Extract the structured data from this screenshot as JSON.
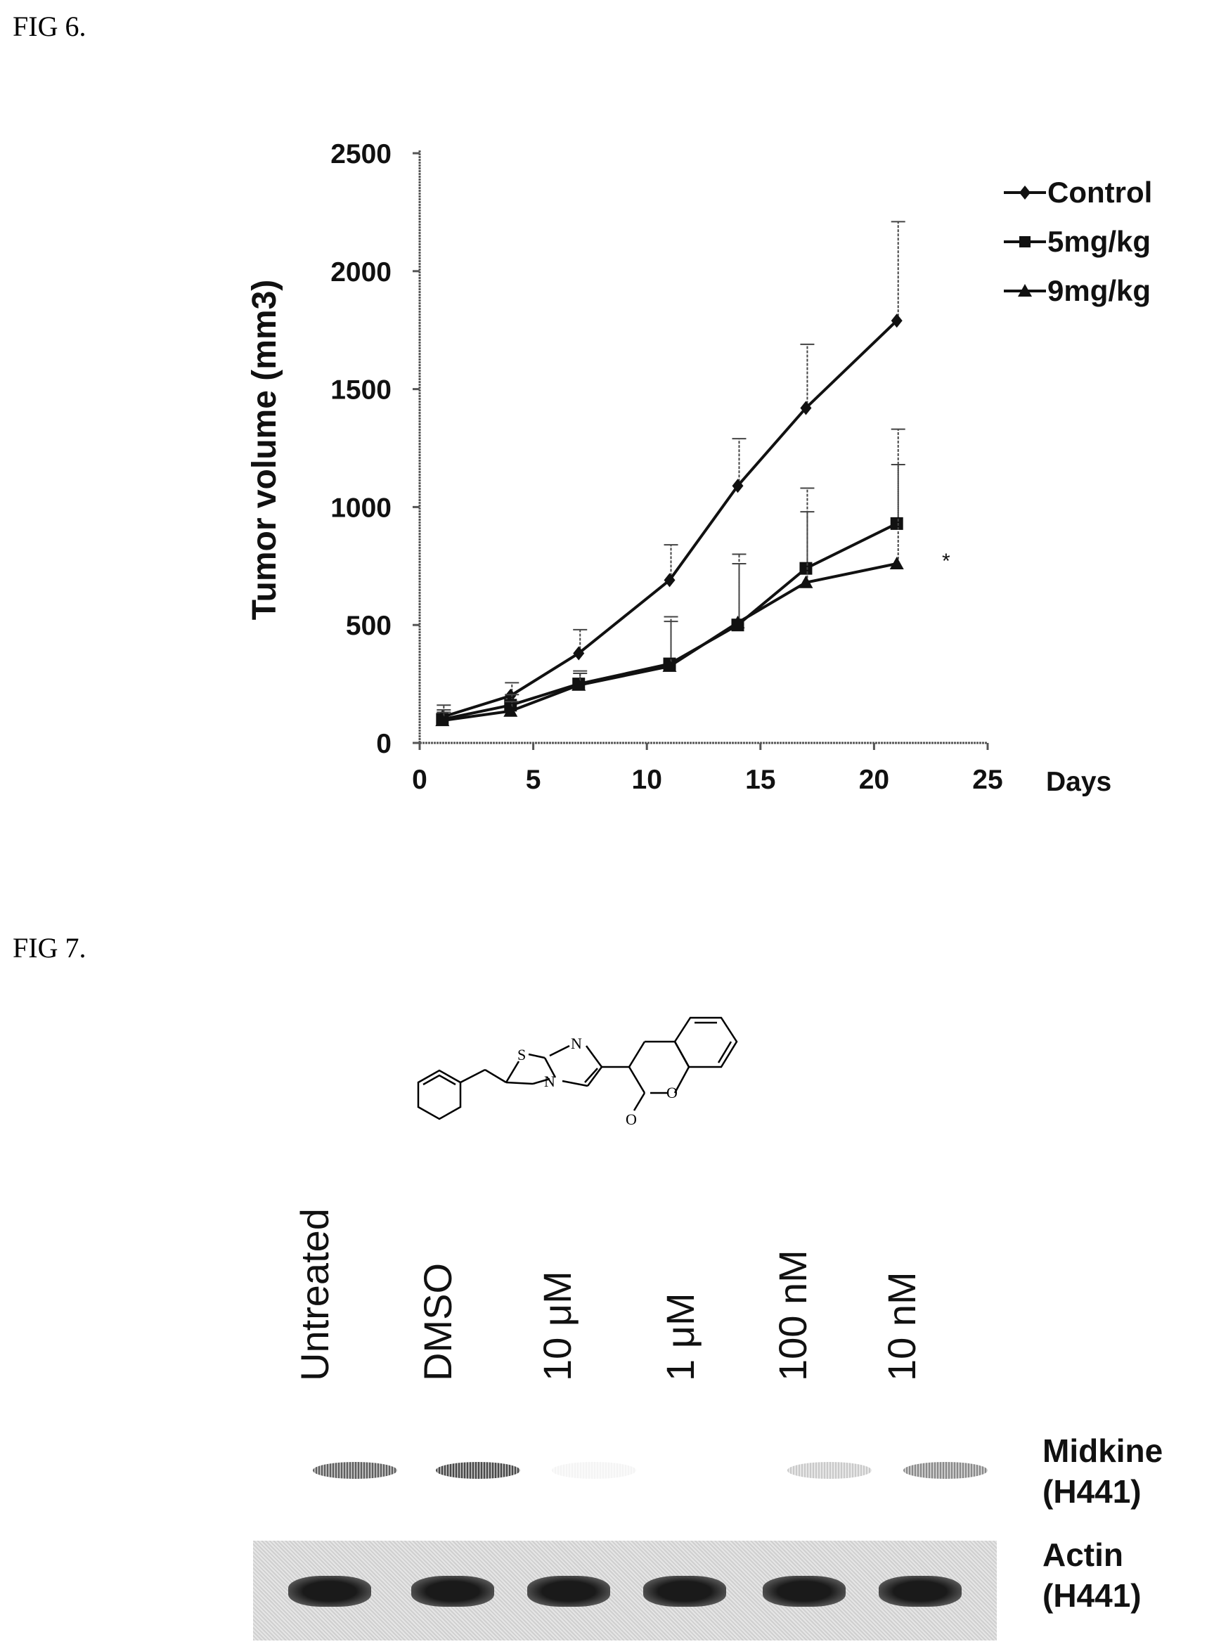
{
  "fig6": {
    "label": "FIG 6.",
    "chart_data": {
      "type": "line",
      "title": "",
      "xlabel": "Days",
      "ylabel": "Tumor volume (mm3)",
      "xlim": [
        0,
        25
      ],
      "ylim": [
        0,
        2500
      ],
      "xticks": [
        "0",
        "5",
        "10",
        "15",
        "20",
        "25"
      ],
      "yticks": [
        "0",
        "500",
        "1000",
        "1500",
        "2000",
        "2500"
      ],
      "legend_position": "top-right",
      "significance_mark": "*",
      "series": [
        {
          "name": "Control",
          "x": [
            1,
            4,
            7,
            11,
            14,
            17,
            21
          ],
          "y": [
            110,
            200,
            380,
            690,
            1090,
            1420,
            1790
          ],
          "err": [
            50,
            55,
            100,
            150,
            200,
            270,
            420
          ],
          "marker": "diamond"
        },
        {
          "name": "5mg/kg",
          "x": [
            1,
            4,
            7,
            11,
            14,
            17,
            21
          ],
          "y": [
            100,
            160,
            250,
            335,
            500,
            740,
            930
          ],
          "err": [
            40,
            45,
            55,
            200,
            300,
            340,
            400
          ],
          "marker": "square"
        },
        {
          "name": "9mg/kg",
          "x": [
            1,
            4,
            7,
            11,
            14,
            17,
            21
          ],
          "y": [
            95,
            135,
            245,
            325,
            510,
            680,
            760
          ],
          "err": [
            35,
            40,
            50,
            190,
            250,
            300,
            420
          ],
          "marker": "triangle"
        }
      ]
    }
  },
  "fig7": {
    "label": "FIG 7.",
    "molecule_atoms": [
      "S",
      "N",
      "N",
      "O",
      "O"
    ],
    "lanes": [
      "Untreated",
      "DMSO",
      "10 μM",
      "1 μM",
      "100 nM",
      "10 nM"
    ],
    "midkine_label_line1": "Midkine",
    "midkine_label_line2": "(H441)",
    "actin_label_line1": "Actin",
    "actin_label_line2": "(H441)",
    "midkine_relative_intensity": [
      0.75,
      0.85,
      0.05,
      0.0,
      0.25,
      0.55
    ],
    "actin_relative_intensity": [
      1.0,
      1.0,
      1.0,
      1.0,
      1.0,
      1.0
    ]
  }
}
